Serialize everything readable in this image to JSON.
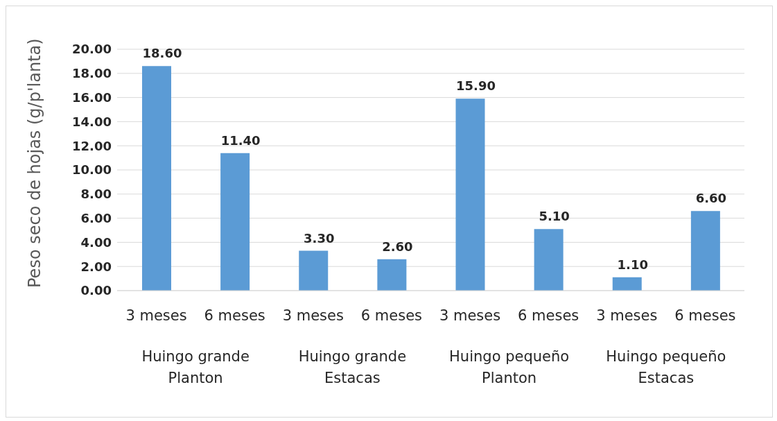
{
  "chart_data": {
    "type": "bar",
    "ylabel": "Peso seco de hojas (g/p'lanta)",
    "categories": [
      "3 meses",
      "6 meses",
      "3 meses",
      "6 meses",
      "3 meses",
      "6 meses",
      "3 meses",
      "6 meses"
    ],
    "series": [
      {
        "color": "#5b9bd5",
        "values": [
          18.6,
          11.4,
          3.3,
          2.6,
          15.9,
          5.1,
          1.1,
          6.6
        ],
        "value_labels": [
          "18.60",
          "11.40",
          "3.30",
          "2.60",
          "15.90",
          "5.10",
          "1.10",
          "6.60"
        ]
      }
    ],
    "ylim": [
      0,
      20
    ],
    "yticks": [
      {
        "value": 0,
        "label": "0.00"
      },
      {
        "value": 2,
        "label": "2.00"
      },
      {
        "value": 4,
        "label": "4.00"
      },
      {
        "value": 6,
        "label": "6.00"
      },
      {
        "value": 8,
        "label": "8.00"
      },
      {
        "value": 10,
        "label": "10.00"
      },
      {
        "value": 12,
        "label": "12.00"
      },
      {
        "value": 14,
        "label": "14.00"
      },
      {
        "value": 16,
        "label": "16.00"
      },
      {
        "value": 18,
        "label": "18.00"
      },
      {
        "value": 20,
        "label": "20.00"
      }
    ],
    "grid": "y",
    "legend": false,
    "annotations": [
      "Huingo grande Planton",
      "Huingo grande Estacas",
      "Huingo pequeño Planton",
      "Huingo pequeño Estacas"
    ]
  }
}
